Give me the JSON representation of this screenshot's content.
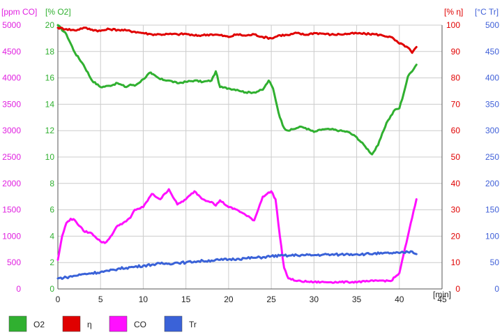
{
  "chart_data": {
    "type": "line",
    "x_unit": "[min]",
    "x_range": [
      0,
      45
    ],
    "x_ticks": [
      0,
      5,
      10,
      15,
      20,
      25,
      30,
      35,
      40,
      45
    ],
    "grid": true,
    "axes": {
      "co": {
        "unit": "[ppm CO]",
        "range": [
          0,
          5000
        ],
        "ticks": [
          0,
          500,
          1000,
          1500,
          2000,
          2500,
          3000,
          3500,
          4000,
          4500,
          5000
        ],
        "color": "#e020e0"
      },
      "o2": {
        "unit": "[% O2]",
        "range": [
          0,
          20
        ],
        "ticks": [
          0,
          2,
          4,
          6,
          8,
          10,
          12,
          14,
          16,
          18,
          20
        ],
        "color": "#30b030"
      },
      "eta": {
        "unit": "[% η]",
        "range": [
          0,
          100
        ],
        "ticks": [
          0,
          10,
          20,
          30,
          40,
          50,
          60,
          70,
          80,
          90,
          100
        ],
        "color": "#e00000"
      },
      "tr": {
        "unit": "[°C Tr]",
        "range": [
          0,
          500
        ],
        "ticks": [
          0,
          50,
          100,
          150,
          200,
          250,
          300,
          350,
          400,
          450,
          500
        ],
        "color": "#4060d8"
      }
    },
    "legend_position": "bottom",
    "series": [
      {
        "name": "O2",
        "axis": "o2",
        "color": "#30b030",
        "x": [
          0,
          1,
          2,
          3,
          4,
          5,
          6,
          7,
          8,
          8.5,
          9,
          10,
          10.8,
          11,
          12,
          13,
          14,
          15,
          16,
          17,
          18,
          18.5,
          19,
          20,
          21,
          22,
          23,
          24,
          24.7,
          25.2,
          26,
          26.5,
          27,
          28,
          28.5,
          29,
          30,
          31,
          32,
          33,
          34,
          35,
          36,
          36.8,
          37.5,
          38.5,
          39.5,
          40,
          40.5,
          41,
          42
        ],
        "y": [
          20,
          19.3,
          17.9,
          17.0,
          15.8,
          15.3,
          15.4,
          15.6,
          15.3,
          15.5,
          15.4,
          15.9,
          16.4,
          16.3,
          15.9,
          15.8,
          15.6,
          15.7,
          15.8,
          15.7,
          15.8,
          16.5,
          15.3,
          15.2,
          15.1,
          14.9,
          14.9,
          15.1,
          15.8,
          15.2,
          13.0,
          12.2,
          12.0,
          12.2,
          12.3,
          12.2,
          11.9,
          12.1,
          12.1,
          12.0,
          11.9,
          11.5,
          10.8,
          10.2,
          10.9,
          12.6,
          13.6,
          13.7,
          14.8,
          16.1,
          17.0
        ]
      },
      {
        "name": "η",
        "axis": "eta",
        "color": "#e00000",
        "x": [
          0,
          1,
          2,
          3,
          4,
          5,
          6,
          7,
          8,
          9,
          10,
          11,
          12,
          13,
          14,
          15,
          16,
          17,
          18,
          19,
          20,
          21,
          22,
          23,
          24,
          25,
          26,
          27,
          28,
          29,
          30,
          31,
          32,
          33,
          34,
          35,
          36,
          37,
          38,
          39,
          40,
          40.5,
          41,
          41.5,
          42
        ],
        "y": [
          99,
          98.5,
          98,
          99,
          98.3,
          97.8,
          98.5,
          98.2,
          98,
          97.5,
          97,
          96.5,
          96.5,
          96.6,
          96.5,
          96.7,
          96,
          96.2,
          96.5,
          96.2,
          95.5,
          96.5,
          96,
          96.5,
          95.5,
          95,
          96.2,
          96.2,
          97,
          96.3,
          97,
          96.8,
          96.4,
          96.5,
          96.7,
          96.9,
          96.7,
          96.6,
          96.1,
          95.5,
          93,
          92.5,
          91.5,
          89.5,
          91.7
        ]
      },
      {
        "name": "CO",
        "axis": "co",
        "color": "#ff10ff",
        "x": [
          0,
          0.5,
          1,
          1.5,
          2,
          3,
          4,
          5,
          5.5,
          6,
          7,
          8,
          8.5,
          9,
          10,
          11,
          12,
          13,
          14,
          15,
          16,
          17,
          18,
          18.5,
          19,
          20,
          21,
          22,
          23,
          24,
          25,
          25.5,
          26,
          26.5,
          27,
          28,
          30,
          32,
          34,
          36,
          37,
          38,
          39,
          40,
          41,
          42
        ],
        "y": [
          550,
          1000,
          1250,
          1330,
          1300,
          1100,
          1050,
          900,
          870,
          950,
          1200,
          1280,
          1350,
          1500,
          1550,
          1800,
          1700,
          1890,
          1600,
          1700,
          1850,
          1700,
          1650,
          1580,
          1680,
          1550,
          1500,
          1400,
          1300,
          1750,
          1850,
          1700,
          1000,
          400,
          200,
          150,
          130,
          130,
          130,
          140,
          150,
          160,
          150,
          300,
          1000,
          1700
        ]
      },
      {
        "name": "Tr",
        "axis": "tr",
        "color": "#3a62d8",
        "x": [
          0,
          1,
          2,
          3,
          4,
          5,
          6,
          7,
          8,
          9,
          10,
          11,
          12,
          13,
          14,
          15,
          16,
          17,
          18,
          19,
          20,
          21,
          22,
          23,
          24,
          25,
          26,
          27,
          28,
          29,
          30,
          31,
          32,
          33,
          34,
          35,
          36,
          37,
          38,
          39,
          40,
          41,
          41.5,
          42
        ],
        "y": [
          20,
          22,
          25,
          28,
          30,
          32,
          34,
          38,
          40,
          42,
          44,
          46,
          48,
          48,
          50,
          50,
          52,
          53,
          54,
          55,
          56,
          57,
          58,
          59,
          60,
          62,
          63,
          63,
          64,
          64,
          64,
          65,
          65,
          65,
          66,
          66,
          66,
          67,
          67,
          68,
          68,
          70,
          71,
          66
        ]
      }
    ]
  }
}
